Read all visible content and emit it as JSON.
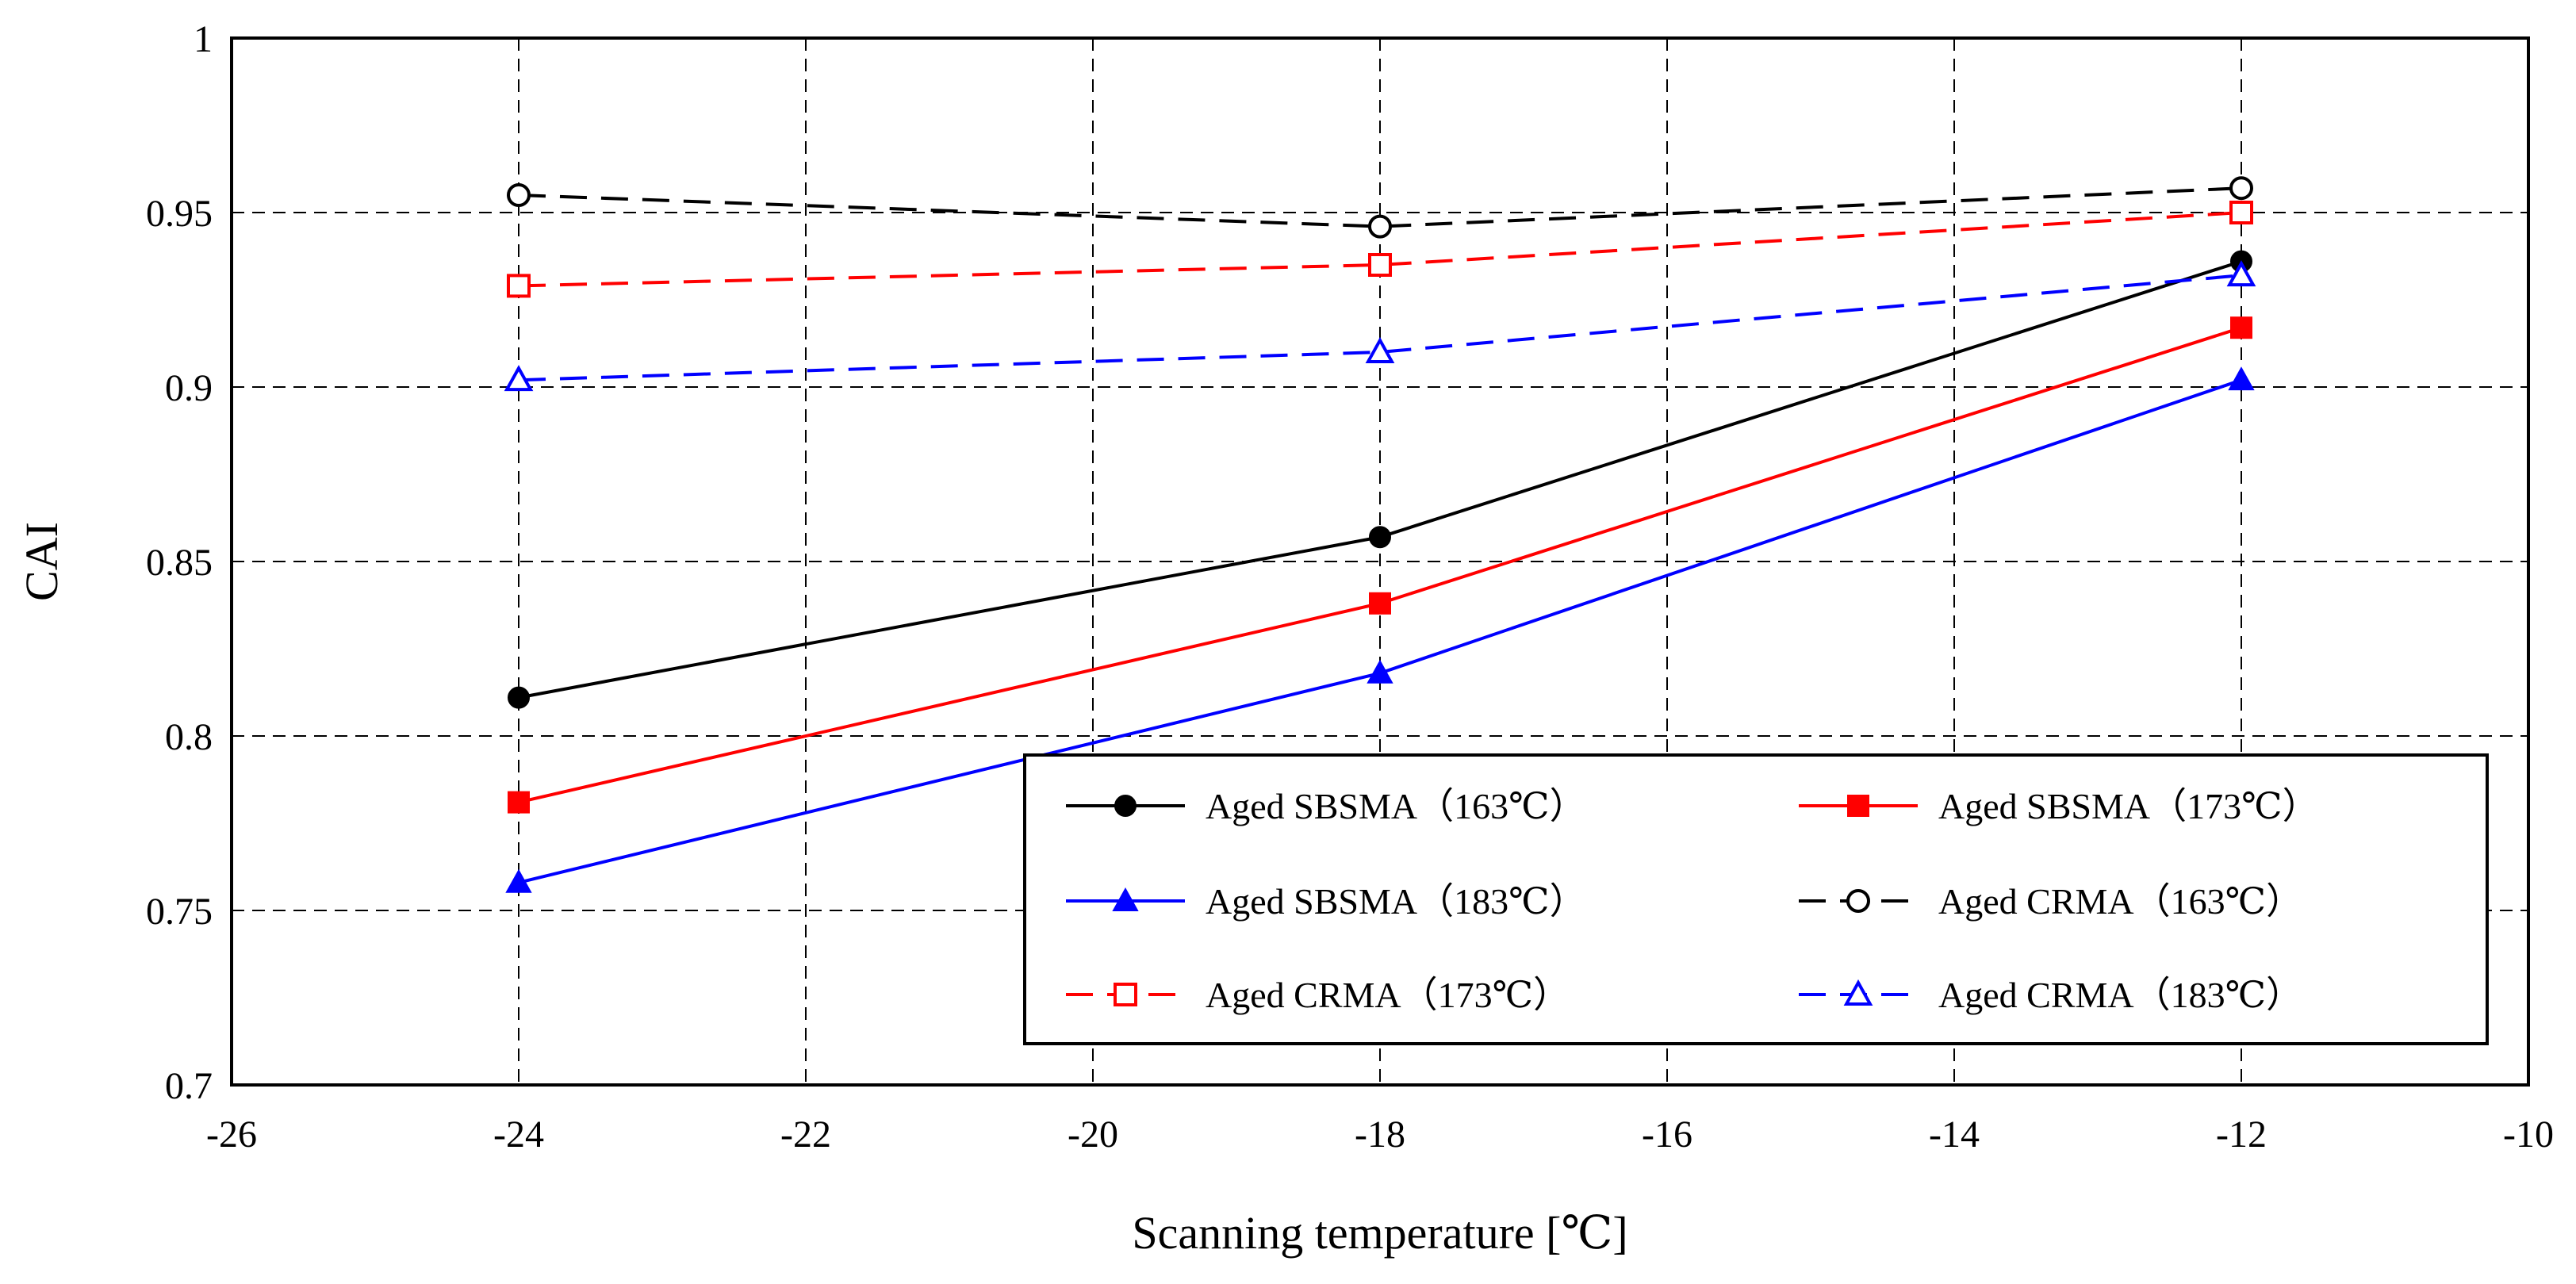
{
  "chart_data": {
    "type": "line",
    "title": "",
    "xlabel": "Scanning temperature [℃]",
    "ylabel": "CAI",
    "xlim": [
      -26,
      -10
    ],
    "ylim": [
      0.7,
      1
    ],
    "xticks": [
      -26,
      -24,
      -22,
      -20,
      -18,
      -16,
      -14,
      -12,
      -10
    ],
    "yticks": [
      0.7,
      0.75,
      0.8,
      0.85,
      0.9,
      0.95,
      1
    ],
    "xtick_labels": [
      "-26",
      "-24",
      "-22",
      "-20",
      "-18",
      "-16",
      "-14",
      "-12",
      "-10"
    ],
    "ytick_labels": [
      "0.7",
      "0.75",
      "0.8",
      "0.85",
      "0.9",
      "0.95",
      "1"
    ],
    "grid": true,
    "legend_position": "bottom-right",
    "x": [
      -24,
      -18,
      -12
    ],
    "series": [
      {
        "name": "Aged SBSMA（163℃）",
        "values": [
          0.811,
          0.857,
          0.936
        ],
        "color": "#000000",
        "dash": "solid",
        "marker": "circle",
        "filled": true
      },
      {
        "name": "Aged SBSMA（173℃）",
        "values": [
          0.781,
          0.838,
          0.917
        ],
        "color": "#ff0000",
        "dash": "solid",
        "marker": "square",
        "filled": true
      },
      {
        "name": "Aged SBSMA（183℃）",
        "values": [
          0.758,
          0.818,
          0.902
        ],
        "color": "#0000ff",
        "dash": "solid",
        "marker": "triangle",
        "filled": true
      },
      {
        "name": "Aged CRMA（163℃）",
        "values": [
          0.955,
          0.946,
          0.957
        ],
        "color": "#000000",
        "dash": "dashed",
        "marker": "circle",
        "filled": false
      },
      {
        "name": "Aged CRMA（173℃）",
        "values": [
          0.929,
          0.935,
          0.95
        ],
        "color": "#ff0000",
        "dash": "dashed",
        "marker": "square",
        "filled": false
      },
      {
        "name": "Aged CRMA（183℃）",
        "values": [
          0.902,
          0.91,
          0.932
        ],
        "color": "#0000ff",
        "dash": "dashed",
        "marker": "triangle",
        "filled": false
      }
    ]
  }
}
